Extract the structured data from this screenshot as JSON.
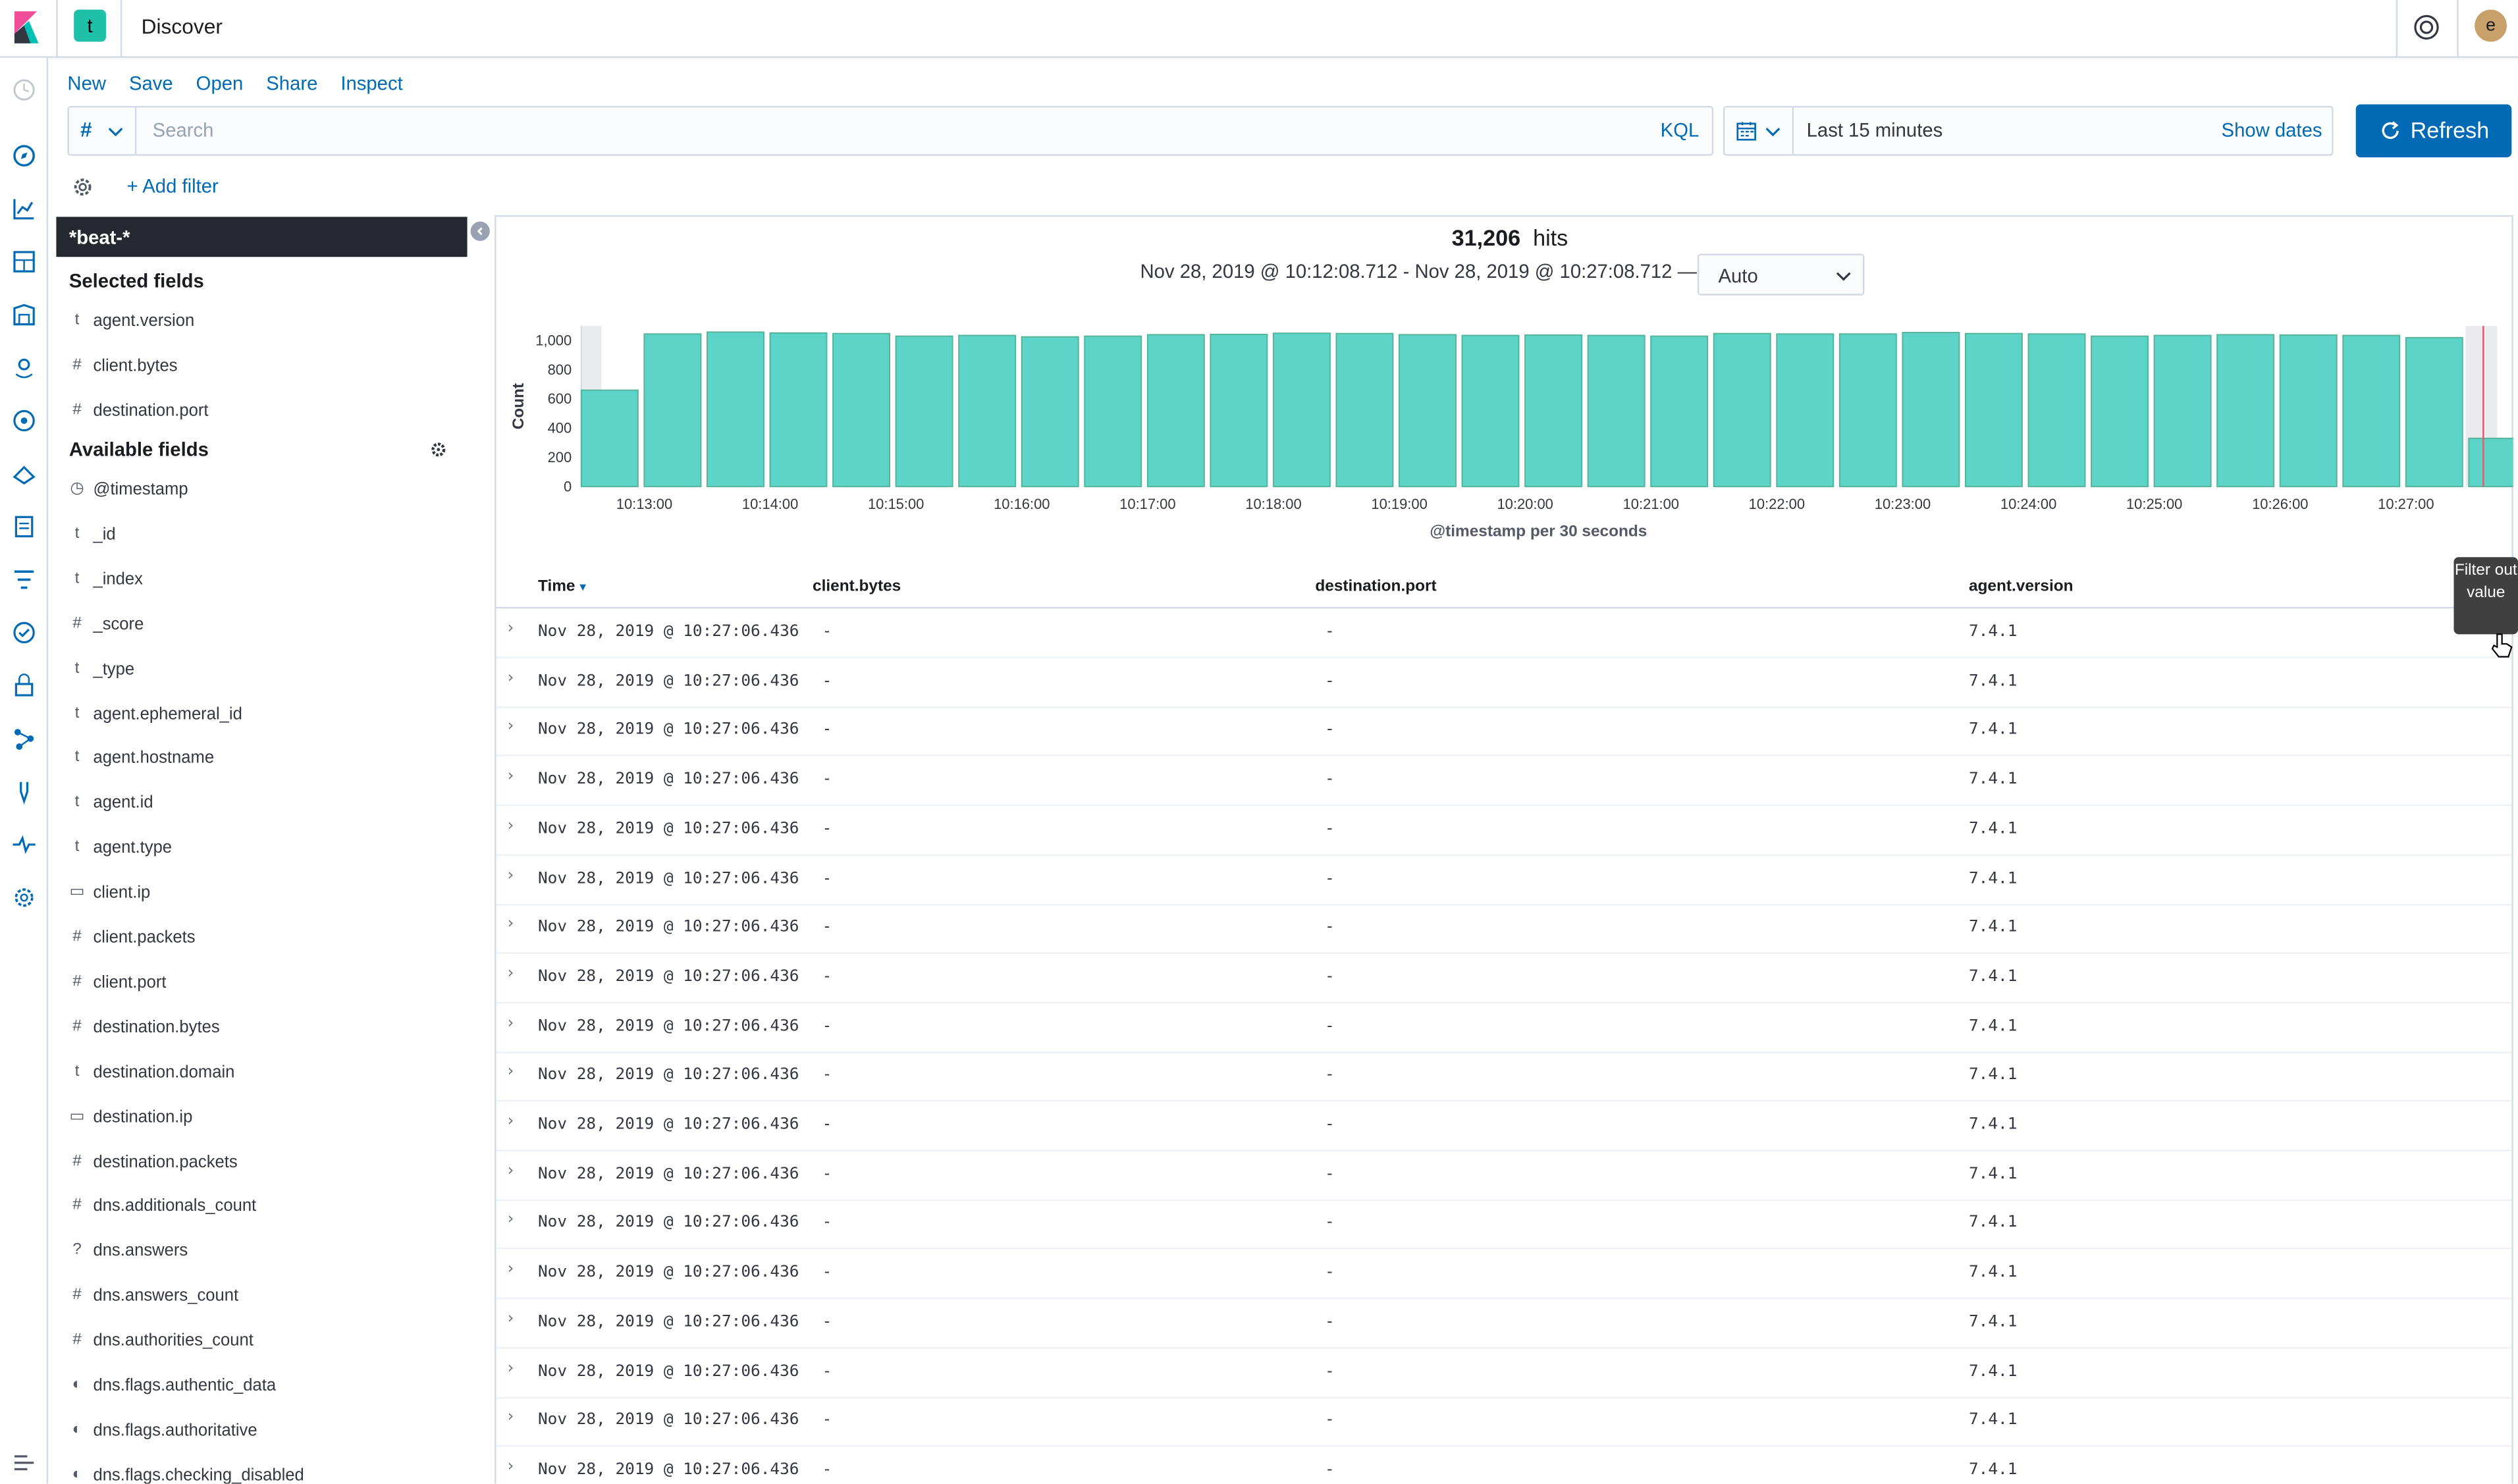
{
  "header": {
    "space_initial": "t",
    "title": "Discover",
    "user_initial": "e"
  },
  "menu": {
    "new": "New",
    "save": "Save",
    "open": "Open",
    "share": "Share",
    "inspect": "Inspect"
  },
  "query": {
    "lang_symbol": "#",
    "placeholder": "Search",
    "language": "KQL"
  },
  "datepicker": {
    "label": "Last 15 minutes",
    "show_dates": "Show dates"
  },
  "refresh": {
    "label": "Refresh"
  },
  "filters": {
    "add_filter": "+ Add filter"
  },
  "sidebar": {
    "index_pattern": "*beat-*",
    "selected_title": "Selected fields",
    "selected": [
      {
        "type": "t",
        "name": "agent.version"
      },
      {
        "type": "#",
        "name": "client.bytes"
      },
      {
        "type": "#",
        "name": "destination.port"
      }
    ],
    "available_title": "Available fields",
    "available": [
      {
        "type": "clock",
        "name": "@timestamp"
      },
      {
        "type": "t",
        "name": "_id"
      },
      {
        "type": "t",
        "name": "_index"
      },
      {
        "type": "#",
        "name": "_score"
      },
      {
        "type": "t",
        "name": "_type"
      },
      {
        "type": "t",
        "name": "agent.ephemeral_id"
      },
      {
        "type": "t",
        "name": "agent.hostname"
      },
      {
        "type": "t",
        "name": "agent.id"
      },
      {
        "type": "t",
        "name": "agent.type"
      },
      {
        "type": "ip",
        "name": "client.ip"
      },
      {
        "type": "#",
        "name": "client.packets"
      },
      {
        "type": "#",
        "name": "client.port"
      },
      {
        "type": "#",
        "name": "destination.bytes"
      },
      {
        "type": "t",
        "name": "destination.domain"
      },
      {
        "type": "ip",
        "name": "destination.ip"
      },
      {
        "type": "#",
        "name": "destination.packets"
      },
      {
        "type": "#",
        "name": "dns.additionals_count"
      },
      {
        "type": "?",
        "name": "dns.answers"
      },
      {
        "type": "#",
        "name": "dns.answers_count"
      },
      {
        "type": "#",
        "name": "dns.authorities_count"
      },
      {
        "type": "bool",
        "name": "dns.flags.authentic_data"
      },
      {
        "type": "bool",
        "name": "dns.flags.authoritative"
      },
      {
        "type": "bool",
        "name": "dns.flags.checking_disabled"
      }
    ]
  },
  "hits": {
    "count": "31,206",
    "label": "hits"
  },
  "time_range": "Nov 28, 2019 @ 10:12:08.712 - Nov 28, 2019 @ 10:27:08.712 —",
  "interval": "Auto",
  "chart_data": {
    "type": "bar",
    "ylabel": "Count",
    "xlabel": "@timestamp per 30 seconds",
    "ylim": [
      0,
      1100
    ],
    "yticks": [
      "0",
      "200",
      "400",
      "600",
      "800",
      "1,000"
    ],
    "xticks": [
      "10:13:00",
      "10:14:00",
      "10:15:00",
      "10:16:00",
      "10:17:00",
      "10:18:00",
      "10:19:00",
      "10:20:00",
      "10:21:00",
      "10:22:00",
      "10:23:00",
      "10:24:00",
      "10:25:00",
      "10:26:00",
      "10:27:00"
    ],
    "values": [
      660,
      1045,
      1058,
      1052,
      1048,
      1030,
      1035,
      1025,
      1030,
      1040,
      1042,
      1050,
      1048,
      1040,
      1035,
      1038,
      1035,
      1030,
      1048,
      1045,
      1045,
      1055,
      1048,
      1045,
      1030,
      1035,
      1040,
      1038,
      1035,
      1020,
      330
    ],
    "grid": false
  },
  "table": {
    "headers": {
      "time": "Time",
      "bytes": "client.bytes",
      "port": "destination.port",
      "version": "agent.version"
    },
    "rows": [
      {
        "time": "Nov 28, 2019 @ 10:27:06.436",
        "bytes": "-",
        "port": "-",
        "version": "7.4.1"
      },
      {
        "time": "Nov 28, 2019 @ 10:27:06.436",
        "bytes": "-",
        "port": "-",
        "version": "7.4.1"
      },
      {
        "time": "Nov 28, 2019 @ 10:27:06.436",
        "bytes": "-",
        "port": "-",
        "version": "7.4.1"
      },
      {
        "time": "Nov 28, 2019 @ 10:27:06.436",
        "bytes": "-",
        "port": "-",
        "version": "7.4.1"
      },
      {
        "time": "Nov 28, 2019 @ 10:27:06.436",
        "bytes": "-",
        "port": "-",
        "version": "7.4.1"
      },
      {
        "time": "Nov 28, 2019 @ 10:27:06.436",
        "bytes": "-",
        "port": "-",
        "version": "7.4.1"
      },
      {
        "time": "Nov 28, 2019 @ 10:27:06.436",
        "bytes": "-",
        "port": "-",
        "version": "7.4.1"
      },
      {
        "time": "Nov 28, 2019 @ 10:27:06.436",
        "bytes": "-",
        "port": "-",
        "version": "7.4.1"
      },
      {
        "time": "Nov 28, 2019 @ 10:27:06.436",
        "bytes": "-",
        "port": "-",
        "version": "7.4.1"
      },
      {
        "time": "Nov 28, 2019 @ 10:27:06.436",
        "bytes": "-",
        "port": "-",
        "version": "7.4.1"
      },
      {
        "time": "Nov 28, 2019 @ 10:27:06.436",
        "bytes": "-",
        "port": "-",
        "version": "7.4.1"
      },
      {
        "time": "Nov 28, 2019 @ 10:27:06.436",
        "bytes": "-",
        "port": "-",
        "version": "7.4.1"
      },
      {
        "time": "Nov 28, 2019 @ 10:27:06.436",
        "bytes": "-",
        "port": "-",
        "version": "7.4.1"
      },
      {
        "time": "Nov 28, 2019 @ 10:27:06.436",
        "bytes": "-",
        "port": "-",
        "version": "7.4.1"
      },
      {
        "time": "Nov 28, 2019 @ 10:27:06.436",
        "bytes": "-",
        "port": "-",
        "version": "7.4.1"
      },
      {
        "time": "Nov 28, 2019 @ 10:27:06.436",
        "bytes": "-",
        "port": "-",
        "version": "7.4.1"
      },
      {
        "time": "Nov 28, 2019 @ 10:27:06.436",
        "bytes": "-",
        "port": "-",
        "version": "7.4.1"
      },
      {
        "time": "Nov 28, 2019 @ 10:27:06.436",
        "bytes": "-",
        "port": "-",
        "version": "7.4.1"
      }
    ]
  },
  "tooltip": "Filter out value",
  "colors": {
    "bar": "#54b399",
    "bar_fill": "#5dd4c8",
    "accent": "#006bb4",
    "index_bg": "#25282f"
  },
  "icons": [
    "kibana-logo-icon",
    "help-icon",
    "clock-icon",
    "discover-icon",
    "visualize-icon",
    "dashboard-icon",
    "canvas-icon",
    "maps-icon",
    "ml-icon",
    "infrastructure-icon",
    "logs-icon",
    "apm-icon",
    "uptime-icon",
    "siem-icon",
    "graph-icon",
    "dev-tools-icon",
    "monitoring-icon",
    "management-icon"
  ]
}
